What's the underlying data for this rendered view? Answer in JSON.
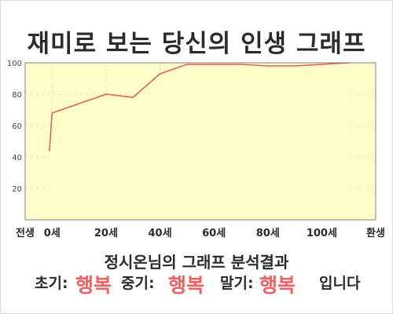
{
  "title": "재미로 보는 당신의 인생 그래프",
  "chart_data": {
    "type": "area",
    "x": [
      -1,
      0,
      20,
      30,
      40,
      50,
      60,
      70,
      80,
      90,
      100,
      110
    ],
    "x_labels": [
      "전생",
      "0세",
      "20세",
      "40세",
      "60세",
      "80세",
      "100세",
      "환생"
    ],
    "label_positions": [
      -10,
      0,
      20,
      40,
      60,
      80,
      100,
      120
    ],
    "values": [
      44,
      68,
      80,
      78,
      93,
      99,
      99,
      99,
      98,
      98,
      99,
      100
    ],
    "ylim": [
      0,
      100
    ],
    "yticks": [
      20,
      40,
      60,
      80,
      100
    ],
    "xlim": [
      -10,
      120
    ],
    "grid": true,
    "line_color": "#e06060",
    "fill_color": "#fffdc8"
  },
  "summary": {
    "title": "정시온님의 그래프 분석결과",
    "early_label": "초기:",
    "early_value": "행복",
    "mid_label": "중기:",
    "mid_value": "행복",
    "late_label": "말기:",
    "late_value": "행복",
    "ending": "입니다"
  },
  "colors": {
    "highlight": "#f06060",
    "text": "#2b2b2b"
  }
}
